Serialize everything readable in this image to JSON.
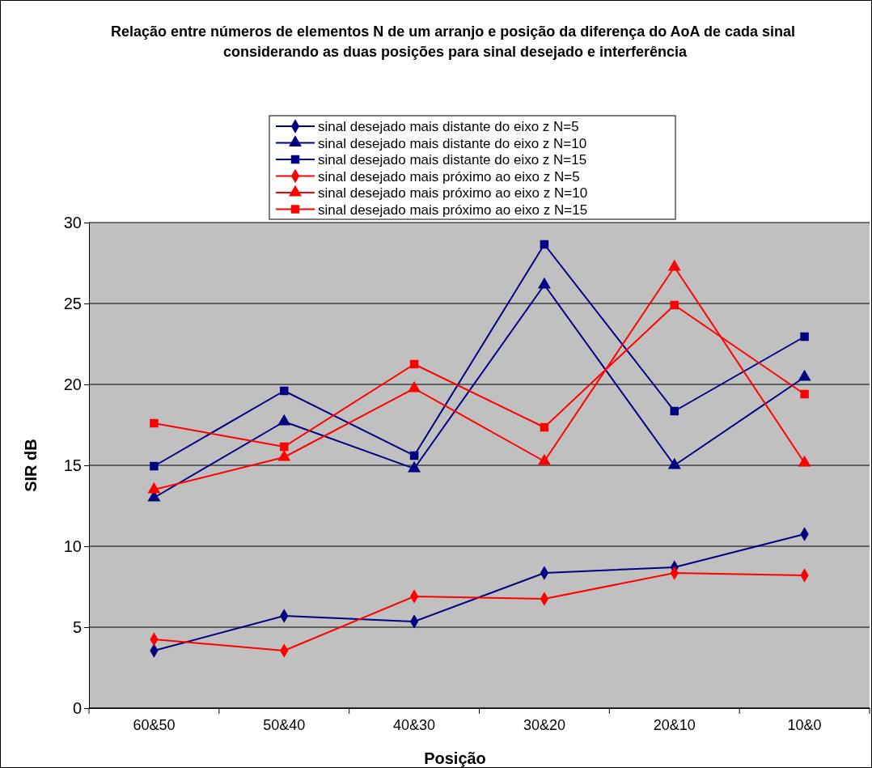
{
  "chart_data": {
    "type": "line",
    "title": "Relação entre números de elementos N de um arranjo e posição da diferença do AoA de cada sinal  considerando as duas posições para sinal desejado e interferência",
    "xlabel": "Posição",
    "ylabel": "SIR dB",
    "categories": [
      "60&50",
      "50&40",
      "40&30",
      "30&20",
      "20&10",
      "10&0"
    ],
    "ylim": [
      0,
      30
    ],
    "yticks": [
      0,
      5,
      10,
      15,
      20,
      25,
      30
    ],
    "grid": "y",
    "legend": "top",
    "series": [
      {
        "name": "sinal desejado mais distante do eixo z N=5",
        "color": "#000080",
        "marker": "diamond",
        "values": [
          3.55,
          5.7,
          5.35,
          8.35,
          8.7,
          10.75
        ]
      },
      {
        "name": "sinal desejado mais distante do eixo z N=10",
        "color": "#000080",
        "marker": "triangle",
        "values": [
          13.0,
          17.7,
          14.8,
          26.15,
          15.0,
          20.45
        ]
      },
      {
        "name": "sinal desejado mais distante do eixo z N=15",
        "color": "#000080",
        "marker": "square",
        "values": [
          14.95,
          19.6,
          15.6,
          28.65,
          18.35,
          22.95
        ]
      },
      {
        "name": "sinal desejado mais próximo ao eixo z N=5",
        "color": "#ff0000",
        "marker": "diamond",
        "values": [
          4.25,
          3.55,
          6.9,
          6.75,
          8.35,
          8.2
        ]
      },
      {
        "name": "sinal desejado mais próximo ao eixo z N=10",
        "color": "#ff0000",
        "marker": "triangle",
        "values": [
          13.5,
          15.5,
          19.75,
          15.25,
          27.25,
          15.15
        ]
      },
      {
        "name": "sinal desejado mais próximo ao eixo z N=15",
        "color": "#ff0000",
        "marker": "square",
        "values": [
          17.6,
          16.15,
          21.25,
          17.35,
          24.9,
          19.4
        ]
      }
    ]
  }
}
